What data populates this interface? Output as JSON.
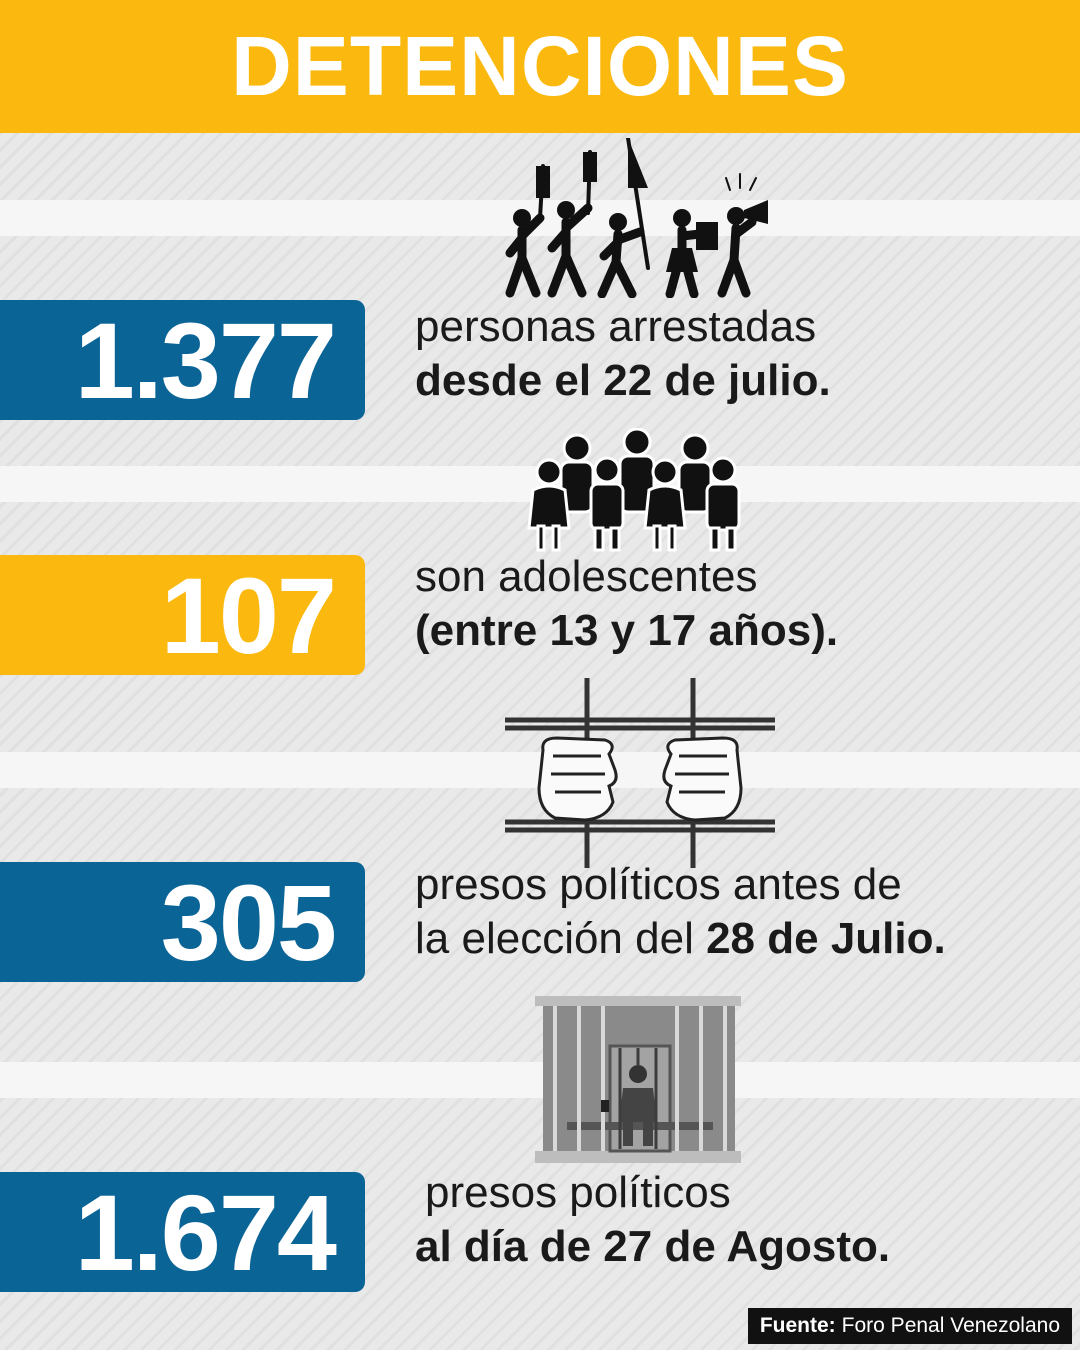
{
  "title": "DETENCIONES",
  "colors": {
    "yellow": "#fbb910",
    "blue": "#0b6496",
    "ink": "#111111"
  },
  "stats": [
    {
      "value": "1.377",
      "color": "blue",
      "line1": "personas arrestadas",
      "line2": "desde el 22 de julio.",
      "icon": "protest-crowd-icon"
    },
    {
      "value": "107",
      "color": "yellow",
      "line1": "son adolescentes",
      "line2": "(entre 13 y 17 años).",
      "icon": "group-of-people-icon"
    },
    {
      "value": "305",
      "color": "blue",
      "line1": "presos políticos antes de",
      "line2_plain": "la elección del ",
      "line2_bold": "28 de Julio.",
      "icon": "hands-on-bars-icon"
    },
    {
      "value": "1.674",
      "color": "blue",
      "line1": "presos políticos",
      "line2": "al día de 27 de Agosto.",
      "icon": "prisoner-in-cell-icon"
    }
  ],
  "source": {
    "label": "Fuente:",
    "text": "Foro Penal Venezolano"
  }
}
